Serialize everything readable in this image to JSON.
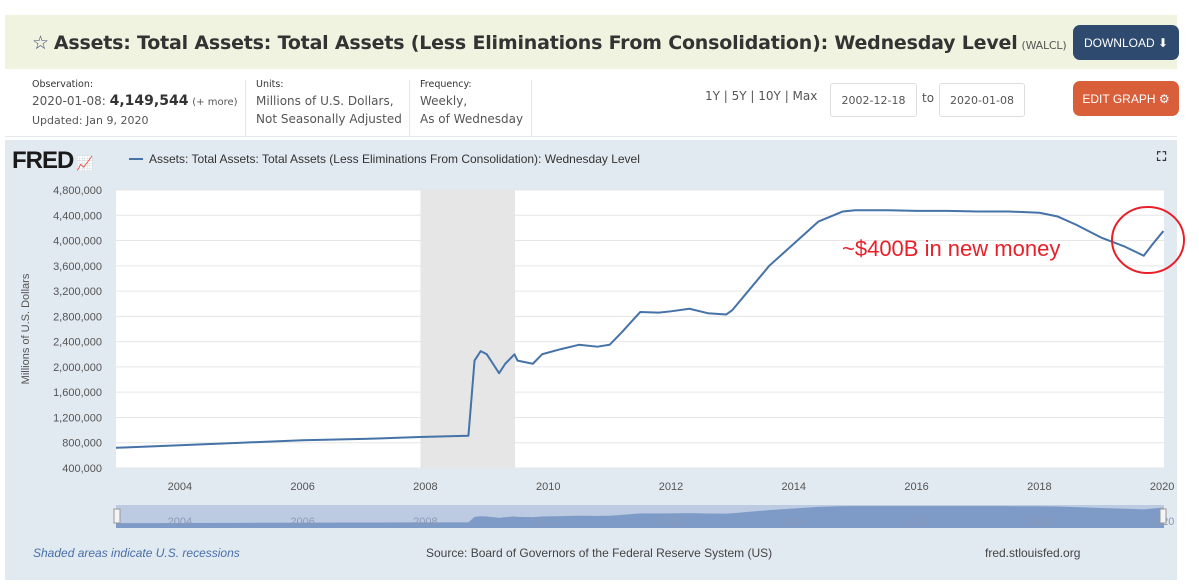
{
  "header": {
    "title": "Assets: Total Assets: Total Assets (Less Eliminations From Consolidation): Wednesday Level",
    "series_id": "(WALCL)",
    "download_label": "DOWNLOAD",
    "edit_graph_label": "EDIT GRAPH"
  },
  "meta": {
    "observation_label": "Observation:",
    "observation_date": "2020-01-08:",
    "observation_value": "4,149,544",
    "observation_more": "(+ more)",
    "updated": "Updated: Jan 9, 2020",
    "units_label": "Units:",
    "units_line1": "Millions of U.S. Dollars,",
    "units_line2": "Not Seasonally Adjusted",
    "frequency_label": "Frequency:",
    "frequency_line1": "Weekly,",
    "frequency_line2": "As of Wednesday"
  },
  "range": {
    "presets": "1Y | 5Y | 10Y | Max",
    "start": "2002-12-18",
    "to_label": "to",
    "end": "2020-01-08"
  },
  "chart_data": {
    "type": "line",
    "logo": "FRED",
    "legend": "Assets: Total Assets: Total Assets (Less Eliminations From Consolidation): Wednesday Level",
    "ylabel": "Millions of U.S. Dollars",
    "ylim": [
      400000,
      4800000
    ],
    "yticks": [
      "400,000",
      "800,000",
      "1,200,000",
      "1,600,000",
      "2,000,000",
      "2,400,000",
      "2,800,000",
      "3,200,000",
      "3,600,000",
      "4,000,000",
      "4,400,000",
      "4,800,000"
    ],
    "xticks": [
      "2004",
      "2006",
      "2008",
      "2010",
      "2012",
      "2014",
      "2016",
      "2018",
      "2020"
    ],
    "xlim": [
      2002.96,
      2020.03
    ],
    "recession": [
      2007.92,
      2009.46
    ],
    "series_color": "#4572a7",
    "series": [
      {
        "name": "Assets: Total Assets: Total Assets (Less Eliminations From Consolidation): Wednesday Level",
        "x": [
          2002.96,
          2003.5,
          2004,
          2005,
          2006,
          2007,
          2007.9,
          2008.3,
          2008.7,
          2008.75,
          2008.8,
          2008.9,
          2009.0,
          2009.1,
          2009.2,
          2009.3,
          2009.45,
          2009.5,
          2009.6,
          2009.75,
          2009.9,
          2010.2,
          2010.5,
          2010.8,
          2011.0,
          2011.2,
          2011.5,
          2011.8,
          2012.0,
          2012.3,
          2012.6,
          2012.9,
          2013.0,
          2013.3,
          2013.6,
          2014.0,
          2014.4,
          2014.8,
          2015.0,
          2015.5,
          2016,
          2016.5,
          2017,
          2017.5,
          2018,
          2018.3,
          2018.6,
          2019.0,
          2019.4,
          2019.7,
          2019.85,
          2020.02
        ],
        "y": [
          720000,
          740000,
          760000,
          800000,
          840000,
          860000,
          890000,
          900000,
          910000,
          1500000,
          2100000,
          2250000,
          2200000,
          2050000,
          1900000,
          2050000,
          2200000,
          2100000,
          2080000,
          2050000,
          2200000,
          2280000,
          2350000,
          2320000,
          2350000,
          2550000,
          2870000,
          2860000,
          2880000,
          2920000,
          2850000,
          2830000,
          2900000,
          3250000,
          3600000,
          3950000,
          4300000,
          4460000,
          4480000,
          4480000,
          4470000,
          4470000,
          4460000,
          4460000,
          4440000,
          4380000,
          4250000,
          4050000,
          3900000,
          3760000,
          3950000,
          4150000
        ]
      }
    ],
    "annotation": "~$400B in new money",
    "annotation_color": "#e8202a",
    "navigator_ticks": [
      "2004",
      "2006",
      "2008",
      "2010",
      "2012",
      "2014",
      "2016",
      "2018",
      "2020"
    ],
    "grid": true
  },
  "footer": {
    "recessions": "Shaded areas indicate U.S. recessions",
    "source": "Source: Board of Governors of the Federal Reserve System (US)",
    "site": "fred.stlouisfed.org"
  }
}
